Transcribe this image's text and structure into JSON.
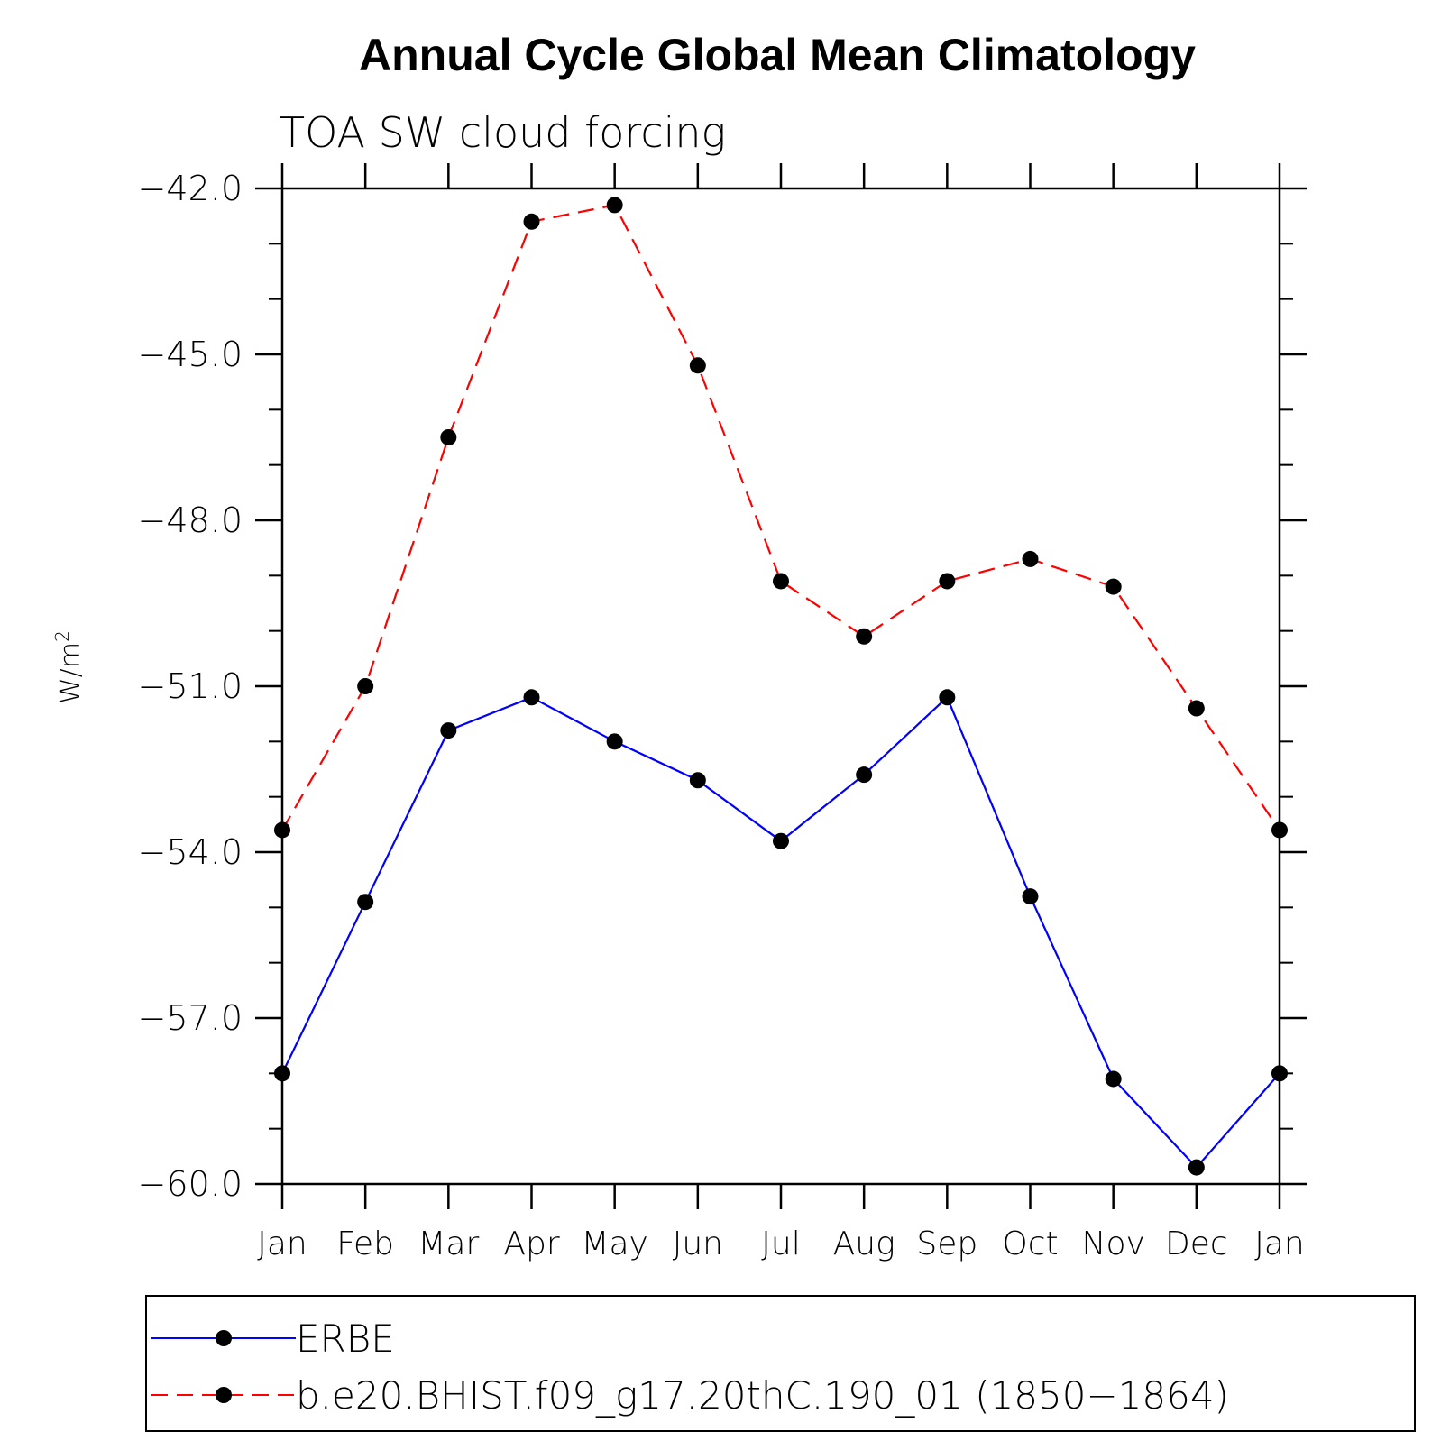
{
  "chart_data": {
    "type": "line",
    "title": "Annual Cycle Global Mean Climatology",
    "subtitle": "TOA SW cloud forcing",
    "ylabel_base": "W/m",
    "ylabel_sup": "2",
    "xlabel": "",
    "categories": [
      "Jan",
      "Feb",
      "Mar",
      "Apr",
      "May",
      "Jun",
      "Jul",
      "Aug",
      "Sep",
      "Oct",
      "Nov",
      "Dec",
      "Jan"
    ],
    "ylim": [
      -60.0,
      -42.0
    ],
    "yticks": [
      -42.0,
      -45.0,
      -48.0,
      -51.0,
      -54.0,
      -57.0,
      -60.0
    ],
    "ytick_labels": [
      "−42.0",
      "−45.0",
      "−48.0",
      "−51.0",
      "−54.0",
      "−57.0",
      "−60.0"
    ],
    "legend_position": "bottom",
    "series": [
      {
        "name": "ERBE",
        "color": "#0000ff",
        "line_style": "solid",
        "marker": "filled-circle",
        "values": [
          -58.0,
          -54.9,
          -51.8,
          -51.2,
          -52.0,
          -52.7,
          -53.8,
          -52.6,
          -51.2,
          -54.8,
          -58.1,
          -59.7,
          -58.0
        ]
      },
      {
        "name": "b.e20.BHIST.f09_g17.20thC.190_01 (1850−1864)",
        "color": "#ff0000",
        "line_style": "dashed",
        "marker": "filled-circle",
        "values": [
          -53.6,
          -51.0,
          -46.5,
          -42.6,
          -42.3,
          -45.2,
          -49.1,
          -50.1,
          -49.1,
          -48.7,
          -49.2,
          -51.4,
          -53.6
        ]
      }
    ]
  }
}
